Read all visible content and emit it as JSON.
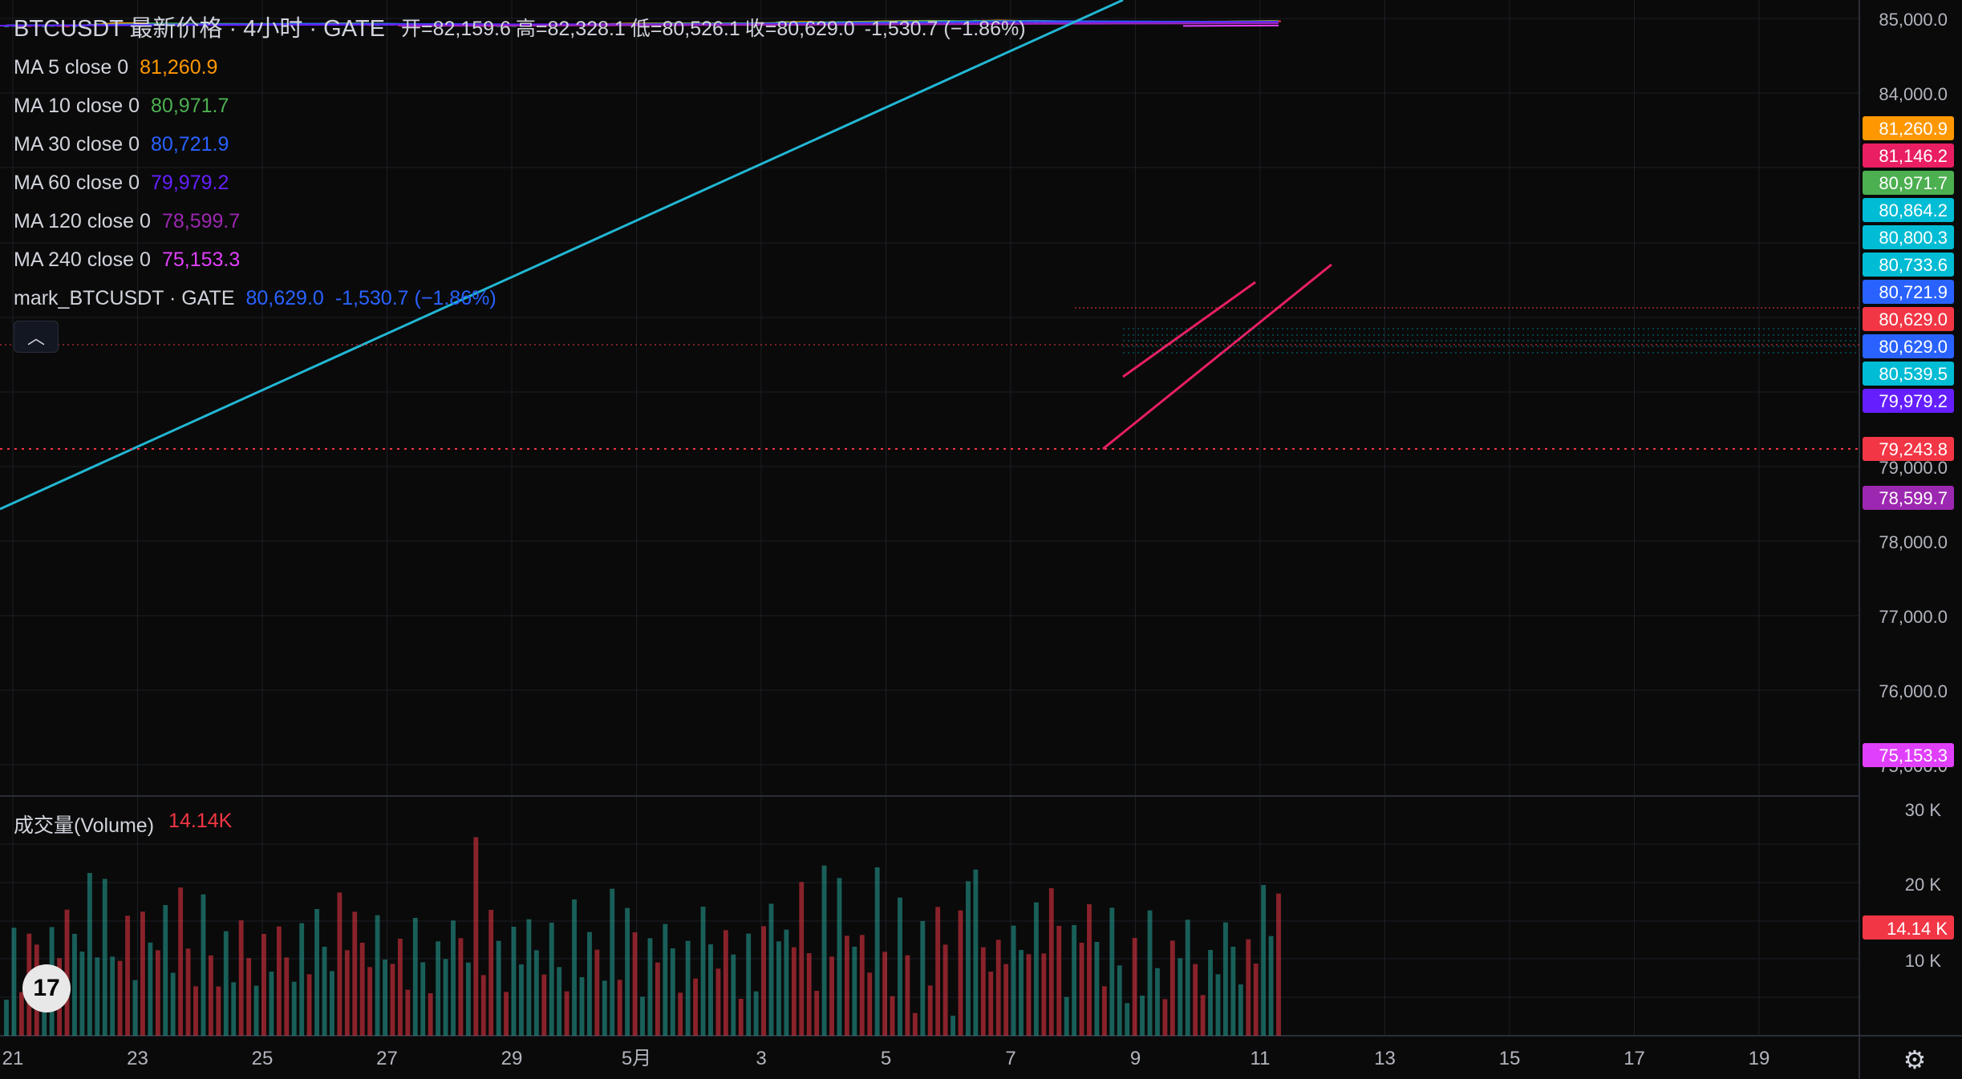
{
  "header": {
    "title": "BTCUSDT 最新价格 · 4小时 · GATE",
    "open_label": "开=",
    "open": "82,159.6",
    "high_label": "高=",
    "high": "82,328.1",
    "low_label": "低=",
    "low": "80,526.1",
    "close_label": "收=",
    "close": "80,629.0",
    "change": "-1,530.7 (−1.86%)"
  },
  "indicators": [
    {
      "label": "MA 5 close 0",
      "value": "81,260.9",
      "color": "#ff9800"
    },
    {
      "label": "MA 10 close 0",
      "value": "80,971.7",
      "color": "#4caf50"
    },
    {
      "label": "MA 30 close 0",
      "value": "80,721.9",
      "color": "#2962ff"
    },
    {
      "label": "MA 60 close 0",
      "value": "79,979.2",
      "color": "#651fff"
    },
    {
      "label": "MA 120 close 0",
      "value": "78,599.7",
      "color": "#9c27b0"
    },
    {
      "label": "MA 240 close 0",
      "value": "75,153.3",
      "color": "#e040fb"
    }
  ],
  "mark": {
    "label": "mark_BTCUSDT · GATE",
    "value": "80,629.0",
    "change": "-1,530.7 (−1.86%)"
  },
  "collapse_icon": "chevron-up-icon",
  "volume": {
    "label": "成交量(Volume)",
    "value": "14.14K",
    "badge": "14.14 K",
    "ticks": [
      "30 K",
      "20 K",
      "10 K"
    ]
  },
  "price_axis_ticks": [
    "85,000.0",
    "84,000.0",
    "79,000.0",
    "78,000.0",
    "77,000.0",
    "76,000.0",
    "75,000.0"
  ],
  "price_badges": [
    {
      "value": "81,260.9",
      "color": "#ff9800"
    },
    {
      "value": "81,146.2",
      "color": "#e91e63"
    },
    {
      "value": "80,971.7",
      "color": "#4caf50"
    },
    {
      "value": "80,864.2",
      "color": "#00bcd4"
    },
    {
      "value": "80,800.3",
      "color": "#00bcd4"
    },
    {
      "value": "80,733.6",
      "color": "#00bcd4"
    },
    {
      "value": "80,721.9",
      "color": "#2962ff"
    },
    {
      "value": "80,629.0",
      "color": "#f23645"
    },
    {
      "value": "80,629.0",
      "color": "#2962ff"
    },
    {
      "value": "80,539.5",
      "color": "#00bcd4"
    },
    {
      "value": "79,979.2",
      "color": "#651fff"
    },
    {
      "value": "79,243.8",
      "color": "#f23645"
    },
    {
      "value": "78,599.7",
      "color": "#9c27b0"
    },
    {
      "value": "75,153.3",
      "color": "#e040fb"
    }
  ],
  "time_axis_labels": [
    "21",
    "23",
    "25",
    "27",
    "29",
    "5月",
    "3",
    "5",
    "7",
    "9",
    "11",
    "13",
    "15",
    "17",
    "19"
  ],
  "logo_text": "17",
  "settings_icon": "gear-icon",
  "colors": {
    "up": "#26a69a",
    "down": "#f23645",
    "trendline": "#22b7d3",
    "channel": "#e91e63"
  }
}
